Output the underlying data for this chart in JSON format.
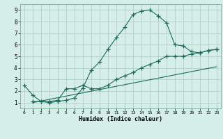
{
  "title": "",
  "xlabel": "Humidex (Indice chaleur)",
  "background_color": "#d6eee8",
  "grid_color": "#b0cfc8",
  "line_color": "#1a6b5a",
  "xlim": [
    -0.5,
    23.5
  ],
  "ylim": [
    0.5,
    9.5
  ],
  "xticks": [
    0,
    1,
    2,
    3,
    4,
    5,
    6,
    7,
    8,
    9,
    10,
    11,
    12,
    13,
    14,
    15,
    16,
    17,
    18,
    19,
    20,
    21,
    22,
    23
  ],
  "yticks": [
    1,
    2,
    3,
    4,
    5,
    6,
    7,
    8,
    9
  ],
  "curve1_x": [
    0,
    1,
    2,
    3,
    4,
    5,
    6,
    7,
    8,
    9,
    10,
    11,
    12,
    13,
    14,
    15,
    16,
    17,
    18,
    19,
    20,
    21,
    22,
    23
  ],
  "curve1_y": [
    2.5,
    1.65,
    1.1,
    1.0,
    1.1,
    1.2,
    1.4,
    2.25,
    3.8,
    4.5,
    5.6,
    6.6,
    7.5,
    8.6,
    8.9,
    9.0,
    8.5,
    7.9,
    6.0,
    5.9,
    5.4,
    5.3,
    5.5,
    5.6
  ],
  "curve2_x": [
    1,
    2,
    3,
    4,
    5,
    6,
    7,
    8,
    9,
    10,
    11,
    12,
    13,
    14,
    15,
    16,
    17,
    18,
    19,
    20,
    21,
    22,
    23
  ],
  "curve2_y": [
    1.1,
    1.1,
    1.1,
    1.2,
    2.2,
    2.2,
    2.5,
    2.2,
    2.2,
    2.5,
    3.0,
    3.3,
    3.6,
    4.0,
    4.3,
    4.6,
    5.0,
    5.0,
    5.0,
    5.2,
    5.3,
    5.5,
    5.6
  ],
  "curve3_x": [
    1,
    23
  ],
  "curve3_y": [
    1.0,
    4.1
  ],
  "marker": "+",
  "markersize": 4,
  "linewidth": 0.8
}
